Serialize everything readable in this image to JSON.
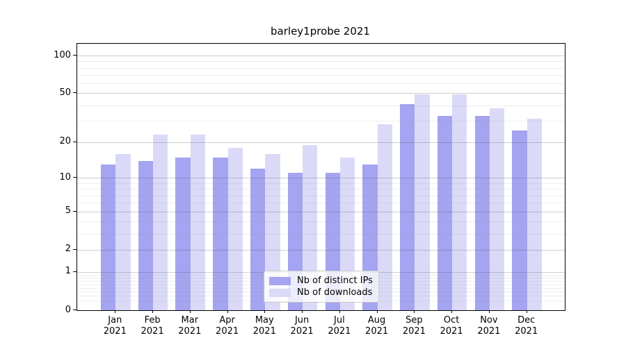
{
  "title": "barley1probe 2021",
  "year": "2021",
  "colors": {
    "distinct_ips_bar": "#a4a4f0",
    "downloads_bar": "#dadaf8",
    "axis": "#000000",
    "major_grid": "#c8c8c8",
    "minor_grid": "#e9e9e9"
  },
  "legend": {
    "items": [
      {
        "label": "Nb of distinct IPs",
        "color": "#a4a4f0"
      },
      {
        "label": "Nb of downloads",
        "color": "#dadaf8"
      }
    ]
  },
  "chart_data": {
    "type": "bar",
    "title": "barley1probe 2021",
    "categories": [
      "Jan",
      "Feb",
      "Mar",
      "Apr",
      "May",
      "Jun",
      "Jul",
      "Aug",
      "Sep",
      "Oct",
      "Nov",
      "Dec"
    ],
    "category_year": "2021",
    "series": [
      {
        "name": "Nb of distinct IPs",
        "color": "#a4a4f0",
        "values": [
          13,
          14,
          15,
          15,
          12,
          11,
          11,
          13,
          41,
          33,
          33,
          25
        ]
      },
      {
        "name": "Nb of downloads",
        "color": "#dadaf8",
        "values": [
          16,
          23,
          23,
          18,
          16,
          19,
          15,
          28,
          49,
          49,
          38,
          31
        ]
      }
    ],
    "xlabel": "",
    "ylabel": "",
    "yscale": "log1p",
    "ylim": [
      0,
      124
    ],
    "y_major_ticks": [
      0,
      1,
      2,
      5,
      10,
      20,
      50,
      100
    ],
    "y_minor_gridlines": [
      0.2,
      0.3,
      0.4,
      0.5,
      0.6,
      0.7,
      0.8,
      0.9,
      3,
      4,
      6,
      7,
      8,
      9,
      30,
      40,
      60,
      70,
      80,
      90
    ],
    "grid": true,
    "legend_position": "lower center"
  }
}
